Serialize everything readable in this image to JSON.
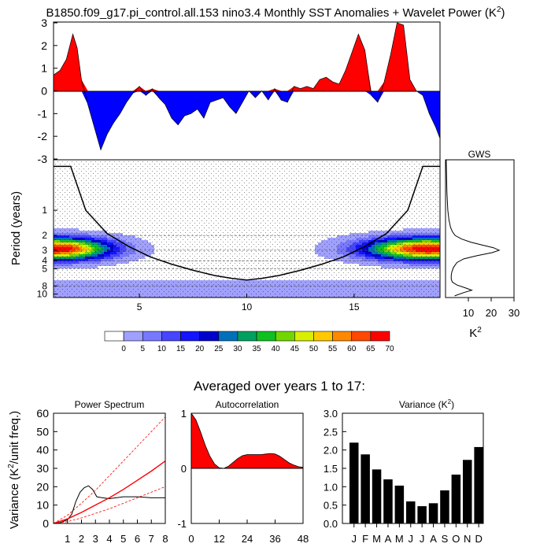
{
  "figure": {
    "title_main": "B1850.f09_g17.pi_control.all.153 nino3.4 Monthly SST Anomalies + Wavelet Power (K",
    "title_sup": "2",
    "title_end": ")",
    "subtitle": "Averaged over years 1 to 17:"
  },
  "chart_data": [
    {
      "id": "sst_anomaly",
      "type": "area",
      "xlim": [
        1,
        19
      ],
      "ylim": [
        -3,
        3
      ],
      "yticks": [
        -3,
        -2,
        -1,
        0,
        1,
        2,
        3
      ],
      "colors": {
        "positive": "#ff0000",
        "negative": "#0000ff"
      },
      "x": [
        1.0,
        1.3,
        1.6,
        1.9,
        2.1,
        2.3,
        2.6,
        2.9,
        3.2,
        3.5,
        3.8,
        4.1,
        4.4,
        4.7,
        5.0,
        5.3,
        5.6,
        5.9,
        6.2,
        6.5,
        6.8,
        7.1,
        7.4,
        7.7,
        8.0,
        8.3,
        8.6,
        8.9,
        9.2,
        9.5,
        9.8,
        10.1,
        10.4,
        10.7,
        11.0,
        11.3,
        11.6,
        11.9,
        12.2,
        12.5,
        12.8,
        13.1,
        13.4,
        13.7,
        14.0,
        14.3,
        14.6,
        14.9,
        15.2,
        15.5,
        15.8,
        16.1,
        16.4,
        16.7,
        17.0,
        17.3,
        17.6,
        17.9,
        18.2,
        18.5,
        18.8,
        19.0
      ],
      "y": [
        0.7,
        0.9,
        1.4,
        2.5,
        1.9,
        0.5,
        -0.6,
        -1.6,
        -2.6,
        -1.9,
        -1.4,
        -1.0,
        -0.5,
        -0.1,
        0.2,
        -0.2,
        0.1,
        -0.3,
        -0.6,
        -1.2,
        -1.5,
        -1.1,
        -1.0,
        -0.8,
        -1.2,
        -0.5,
        -0.4,
        -0.3,
        -0.7,
        -1.0,
        -0.5,
        0.0,
        -0.3,
        0.0,
        -0.4,
        0.1,
        -0.4,
        -0.5,
        0.2,
        0.1,
        0.2,
        0.1,
        0.5,
        0.6,
        0.4,
        0.3,
        0.9,
        1.7,
        2.5,
        1.8,
        -0.2,
        -0.5,
        0.4,
        1.6,
        3.0,
        2.9,
        0.5,
        0.0,
        -0.2,
        -1.0,
        -1.6,
        -2.1
      ]
    },
    {
      "id": "wavelet_power",
      "type": "heatmap",
      "ylabel": "Period (years)",
      "xlim": [
        1,
        19
      ],
      "xticks": [
        5,
        10,
        15
      ],
      "yticks": [
        1,
        2,
        3,
        4,
        5,
        8,
        10
      ],
      "band_periods": [
        2,
        3,
        4,
        5,
        8
      ],
      "cone_of_influence": {
        "x": [
          1.0,
          1.8,
          2.5,
          3.5,
          4.5,
          5.5,
          6.5,
          7.5,
          8.5,
          9.3,
          10.0,
          10.7,
          11.5,
          12.5,
          13.5,
          14.5,
          15.5,
          16.5,
          17.5,
          18.2,
          19.0
        ],
        "period": [
          0.3,
          0.3,
          1.0,
          1.9,
          2.7,
          3.6,
          4.4,
          5.2,
          6.0,
          6.5,
          6.8,
          6.5,
          6.0,
          5.2,
          4.4,
          3.6,
          2.7,
          1.9,
          1.0,
          0.3,
          0.3
        ]
      },
      "hotspots": [
        {
          "x": 1.2,
          "period": 2.9,
          "peak": 72,
          "spread_x": 2.4,
          "spread_period": 0.42
        },
        {
          "x": 18.4,
          "period": 2.9,
          "peak": 72,
          "spread_x": 2.8,
          "spread_period": 0.42
        },
        {
          "x": 10.0,
          "period": 9.1,
          "peak": 7,
          "spread_x": 40.0,
          "spread_period": 0.35
        }
      ],
      "background_level": 3
    },
    {
      "id": "colorbar",
      "type": "table",
      "levels": [
        "0",
        "5",
        "10",
        "15",
        "20",
        "25",
        "30",
        "35",
        "40",
        "45",
        "50",
        "55",
        "60",
        "65",
        "70"
      ],
      "colors": [
        "#ffffff",
        "#a0a0ff",
        "#7878ff",
        "#4646ff",
        "#1414ff",
        "#0000cc",
        "#0070bb",
        "#00a060",
        "#10c020",
        "#70d800",
        "#d8f000",
        "#ffc800",
        "#ff8800",
        "#ff4800",
        "#ff0000"
      ]
    },
    {
      "id": "gws",
      "type": "line",
      "title": "GWS",
      "xlabel": "K²",
      "xlim": [
        0,
        30
      ],
      "xticks": [
        10,
        20,
        30
      ],
      "period": [
        0.25,
        0.6,
        1.0,
        1.3,
        1.6,
        1.8,
        2.0,
        2.2,
        2.4,
        2.6,
        2.8,
        3.0,
        3.2,
        3.5,
        3.8,
        4.2,
        4.8,
        5.4,
        6.0,
        6.6,
        7.2,
        7.8,
        8.4,
        9.0,
        9.6,
        10.5
      ],
      "power": [
        0.3,
        0.6,
        1.0,
        1.5,
        2.2,
        3.0,
        4.2,
        7.0,
        11.0,
        16.0,
        21.0,
        23.5,
        20.5,
        13.5,
        8.0,
        5.0,
        3.5,
        2.8,
        2.5,
        2.5,
        3.0,
        5.0,
        8.5,
        11.5,
        8.0,
        4.0
      ]
    },
    {
      "id": "power_spectrum",
      "type": "line",
      "title": "Power Spectrum",
      "ylabel": "Variance (K²/unit freq.)",
      "xlim": [
        0,
        8
      ],
      "ylim": [
        0,
        60
      ],
      "xticks": [
        1,
        2,
        3,
        4,
        5,
        6,
        7,
        8
      ],
      "yticks": [
        0,
        10,
        20,
        30,
        40,
        50,
        60
      ],
      "series": [
        {
          "style": "black",
          "x": [
            0,
            0.5,
            1.0,
            1.3,
            1.6,
            1.9,
            2.2,
            2.5,
            2.8,
            3.1,
            3.5,
            4.0,
            5.0,
            6.0,
            7.0,
            8.0
          ],
          "y": [
            0,
            0.5,
            2,
            5,
            12,
            17,
            19.5,
            20.5,
            18.5,
            14.5,
            14,
            13.5,
            14.5,
            14.5,
            14,
            14
          ]
        },
        {
          "style": "red",
          "x": [
            0,
            1,
            2,
            3,
            4,
            5,
            6,
            7,
            8
          ],
          "y": [
            0,
            2.5,
            6,
            10,
            14,
            18.5,
            23.5,
            28.5,
            34
          ]
        },
        {
          "style": "red-dash-upper",
          "x": [
            0,
            1,
            2,
            3,
            4,
            5,
            6,
            7,
            8
          ],
          "y": [
            0,
            4.5,
            11,
            18,
            26,
            34,
            42,
            50,
            58
          ]
        },
        {
          "style": "red-dash-lower",
          "x": [
            0,
            1,
            2,
            3,
            4,
            5,
            6,
            7,
            8
          ],
          "y": [
            0,
            1,
            3,
            5.5,
            8,
            11,
            14,
            17,
            20
          ]
        }
      ]
    },
    {
      "id": "autocorrelation",
      "type": "area",
      "title": "Autocorrelation",
      "xlim": [
        0,
        48
      ],
      "ylim": [
        -1,
        1
      ],
      "xticks": [
        0,
        12,
        24,
        36,
        48
      ],
      "yticks": [
        -1,
        0,
        1
      ],
      "x": [
        0,
        2,
        4,
        6,
        8,
        10,
        12,
        14,
        16,
        18,
        20,
        22,
        24,
        26,
        28,
        30,
        32,
        34,
        36,
        38,
        40,
        42,
        44,
        46,
        48
      ],
      "y": [
        1.0,
        0.88,
        0.66,
        0.42,
        0.22,
        0.08,
        0.01,
        0.0,
        0.04,
        0.11,
        0.18,
        0.23,
        0.25,
        0.25,
        0.25,
        0.25,
        0.26,
        0.27,
        0.26,
        0.22,
        0.16,
        0.1,
        0.06,
        0.03,
        0.02
      ],
      "color": "#ff0000"
    },
    {
      "id": "monthly_variance",
      "type": "bar",
      "title": "Variance (K",
      "title_sup": "2",
      "title_end": ")",
      "categories": [
        "J",
        "F",
        "M",
        "A",
        "M",
        "J",
        "J",
        "A",
        "S",
        "O",
        "N",
        "D"
      ],
      "values": [
        2.2,
        1.88,
        1.47,
        1.2,
        1.03,
        0.6,
        0.47,
        0.55,
        0.9,
        1.33,
        1.73,
        2.08
      ],
      "ylim": [
        0,
        3.0
      ],
      "yticks": [
        "0.0",
        "0.5",
        "1.0",
        "1.5",
        "2.0",
        "2.5",
        "3.0"
      ],
      "color": "#000000"
    }
  ]
}
